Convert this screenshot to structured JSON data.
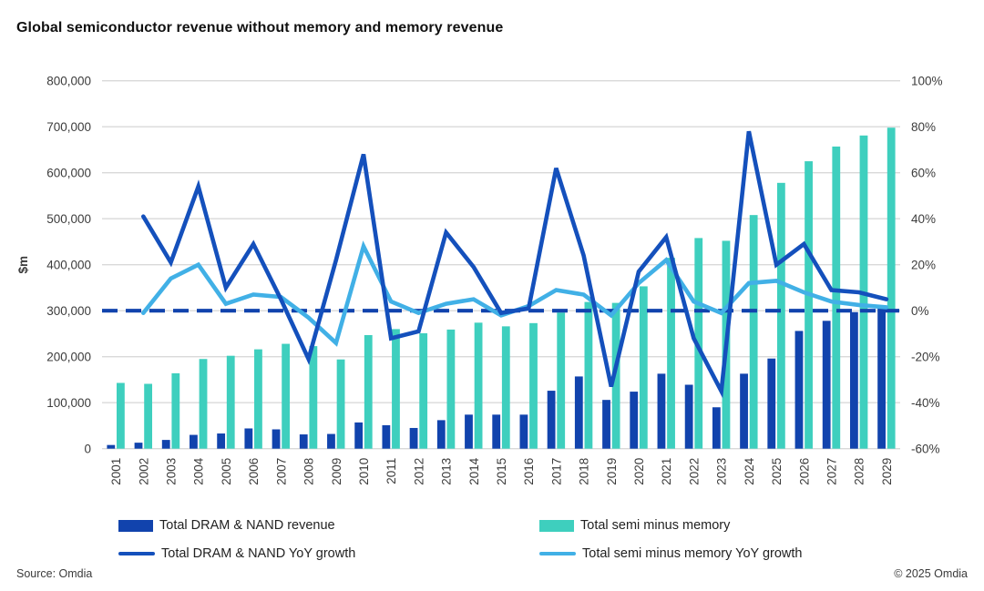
{
  "title": "Global semiconductor revenue without memory and memory revenue",
  "footer": {
    "source": "Source: Omdia",
    "copyright": "© 2025 Omdia"
  },
  "colors": {
    "dram_bar": "#1143ad",
    "semi_bar": "#3ecfbe",
    "dram_line": "#1450bc",
    "semi_line": "#41b0e6",
    "zero_line": "#1143ad",
    "grid": "#d9d9d9",
    "axis_text": "#3c3c3c"
  },
  "legend": [
    {
      "label": "Total DRAM & NAND revenue",
      "swatch": "bar",
      "color_key": "dram_bar"
    },
    {
      "label": "Total semi minus memory",
      "swatch": "bar",
      "color_key": "semi_bar"
    },
    {
      "label": "Total DRAM & NAND YoY growth",
      "swatch": "line",
      "color_key": "dram_line"
    },
    {
      "label": "Total semi minus memory YoY growth",
      "swatch": "line",
      "color_key": "semi_line"
    }
  ],
  "chart_data": {
    "type": "bar",
    "subtype": "bar-line-combo",
    "grid": "horizontal",
    "categories": [
      "2001",
      "2002",
      "2003",
      "2004",
      "2005",
      "2006",
      "2007",
      "2008",
      "2009",
      "2010",
      "2011",
      "2012",
      "2013",
      "2014",
      "2015",
      "2016",
      "2017",
      "2018",
      "2019",
      "2020",
      "2021",
      "2022",
      "2023",
      "2024",
      "2025",
      "2026",
      "2027",
      "2028",
      "2029"
    ],
    "left_axis": {
      "label": "$m",
      "min": 0,
      "max": 800000,
      "step": 100000,
      "tick_labels": [
        "0",
        "100,000",
        "200,000",
        "300,000",
        "400,000",
        "500,000",
        "600,000",
        "700,000",
        "800,000"
      ]
    },
    "right_axis": {
      "min": -60,
      "max": 100,
      "step": 20,
      "tick_labels": [
        "-60%",
        "-40%",
        "-20%",
        "0%",
        "20%",
        "40%",
        "60%",
        "80%",
        "100%"
      ]
    },
    "zero_reference_line": {
      "axis": "right",
      "value": 0,
      "style": "dashed"
    },
    "series": [
      {
        "name": "Total DRAM & NAND revenue",
        "type": "bar",
        "axis": "left",
        "color_key": "dram_bar",
        "values": [
          8000,
          13000,
          19000,
          30000,
          33000,
          44000,
          42000,
          31000,
          32000,
          57000,
          51000,
          45000,
          62000,
          74000,
          74000,
          74000,
          126000,
          157000,
          106000,
          124000,
          163000,
          139000,
          90000,
          163000,
          196000,
          256000,
          278000,
          297000,
          309000
        ]
      },
      {
        "name": "Total semi minus memory",
        "type": "bar",
        "axis": "left",
        "color_key": "semi_bar",
        "values": [
          143000,
          141000,
          164000,
          195000,
          202000,
          216000,
          228000,
          223000,
          194000,
          247000,
          260000,
          251000,
          259000,
          274000,
          266000,
          273000,
          296000,
          319000,
          317000,
          353000,
          415000,
          458000,
          452000,
          508000,
          578000,
          625000,
          657000,
          681000,
          698000
        ]
      },
      {
        "name": "Total DRAM & NAND YoY growth",
        "type": "line",
        "axis": "right",
        "color_key": "dram_line",
        "values": [
          null,
          41,
          21,
          54,
          10,
          29,
          5,
          -21,
          22,
          68,
          -12,
          -9,
          34,
          19,
          -1,
          1,
          62,
          24,
          -33,
          17,
          32,
          -12,
          -35,
          78,
          20,
          29,
          9,
          8,
          5
        ]
      },
      {
        "name": "Total semi minus memory YoY growth",
        "type": "line",
        "axis": "right",
        "color_key": "semi_line",
        "values": [
          null,
          -1,
          14,
          20,
          3,
          7,
          6,
          -3,
          -14,
          28,
          4,
          -1,
          3,
          5,
          -2,
          2,
          9,
          7,
          -2,
          12,
          22,
          4,
          -1,
          12,
          13,
          8,
          4,
          2.5,
          1.5
        ]
      }
    ]
  }
}
